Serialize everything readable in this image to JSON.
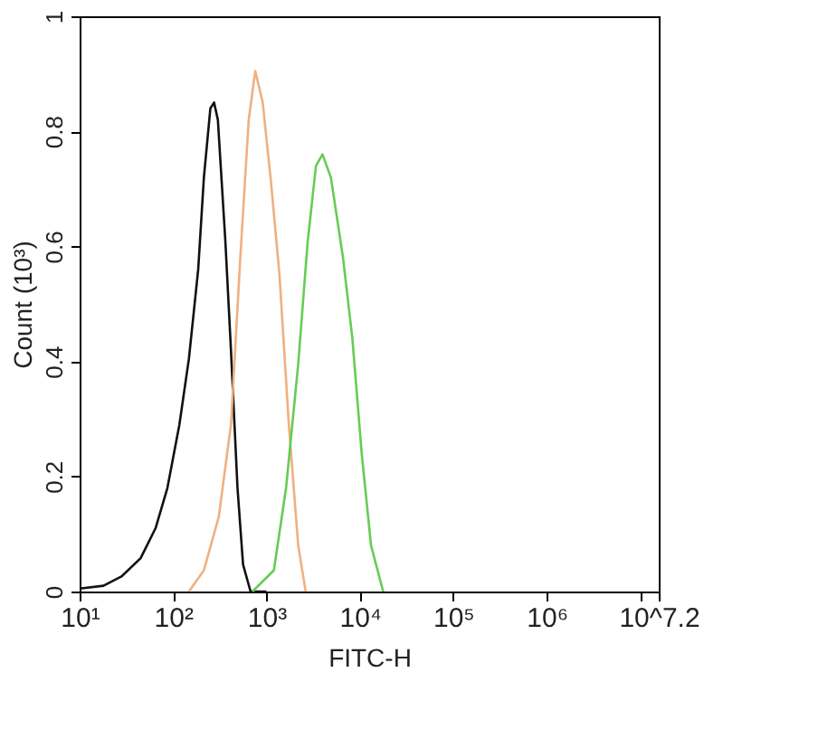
{
  "chart_data": {
    "type": "line",
    "xlabel": "FITC-H",
    "ylabel": "Count (10³)",
    "log": "x",
    "xlim": [
      10,
      15848932
    ],
    "ylim": [
      0,
      1
    ],
    "xticks": [
      {
        "value": 10,
        "label": "10¹"
      },
      {
        "value": 100,
        "label": "10²"
      },
      {
        "value": 1000,
        "label": "10³"
      },
      {
        "value": 10000,
        "label": "10⁴"
      },
      {
        "value": 100000,
        "label": "10⁵"
      },
      {
        "value": 1000000,
        "label": "10⁶"
      },
      {
        "value": 10000000,
        "label": null
      },
      {
        "value": 15848932,
        "label": "10^7.2"
      }
    ],
    "yticks": [
      0,
      0.2,
      0.4,
      0.6,
      0.8,
      1
    ],
    "grid": false,
    "legend": false,
    "series": [
      {
        "color": "#111111",
        "x": [
          10,
          18,
          28,
          45,
          65,
          87,
          117,
          148,
          186,
          214,
          251,
          275,
          302,
          363,
          417,
          490,
          562,
          676,
          1000
        ],
        "values": [
          0.005,
          0.01,
          0.026,
          0.058,
          0.11,
          0.18,
          0.29,
          0.405,
          0.56,
          0.72,
          0.84,
          0.85,
          0.82,
          0.61,
          0.42,
          0.18,
          0.047,
          0,
          0
        ]
      },
      {
        "color": "#f0b080",
        "x": [
          148,
          214,
          309,
          417,
          525,
          646,
          759,
          912,
          1122,
          1380,
          1738,
          2188,
          2630
        ],
        "values": [
          0,
          0.037,
          0.13,
          0.29,
          0.58,
          0.82,
          0.905,
          0.85,
          0.71,
          0.55,
          0.29,
          0.08,
          0
        ]
      },
      {
        "color": "#66cc55",
        "x": [
          708,
          1202,
          1622,
          2188,
          2754,
          3388,
          3981,
          4898,
          6607,
          8318,
          10471,
          13183,
          17783
        ],
        "values": [
          0,
          0.037,
          0.18,
          0.395,
          0.605,
          0.74,
          0.76,
          0.72,
          0.58,
          0.44,
          0.24,
          0.08,
          0
        ]
      }
    ]
  }
}
